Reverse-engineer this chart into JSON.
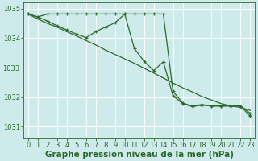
{
  "background_color": "#ceeaea",
  "grid_color": "#b0d8d8",
  "line_color": "#2a6a2a",
  "xlabel": "Graphe pression niveau de la mer (hPa)",
  "ylim": [
    1030.6,
    1035.2
  ],
  "xlim": [
    -0.5,
    23.5
  ],
  "yticks": [
    1031,
    1032,
    1033,
    1034,
    1035
  ],
  "xticks": [
    0,
    1,
    2,
    3,
    4,
    5,
    6,
    7,
    8,
    9,
    10,
    11,
    12,
    13,
    14,
    15,
    16,
    17,
    18,
    19,
    20,
    21,
    22,
    23
  ],
  "xlabel_fontsize": 7.5,
  "tick_fontsize": 6.0,
  "series1": [
    1034.82,
    1034.72,
    1034.82,
    1034.82,
    1034.82,
    1034.82,
    1034.82,
    1034.82,
    1034.82,
    1034.82,
    1034.82,
    1034.82,
    1034.82,
    1034.82,
    1034.82,
    1032.2,
    1031.8,
    1031.7,
    1031.75,
    1031.7,
    1031.7,
    1031.7,
    1031.7,
    1031.45
  ],
  "series2": [
    1034.82,
    1034.65,
    1034.5,
    1034.38,
    1034.22,
    1034.08,
    1033.92,
    1033.77,
    1033.6,
    1033.45,
    1033.3,
    1033.15,
    1032.98,
    1032.82,
    1032.65,
    1032.48,
    1032.32,
    1032.18,
    1032.02,
    1031.9,
    1031.78,
    1031.7,
    1031.65,
    1031.55
  ],
  "series3": [
    1034.82,
    1034.72,
    1034.58,
    1034.42,
    1034.28,
    1034.14,
    1034.02,
    1034.22,
    1034.38,
    1034.52,
    1034.82,
    1033.65,
    1033.22,
    1032.9,
    1033.2,
    1032.05,
    1031.78,
    1031.68,
    1031.73,
    1031.7,
    1031.7,
    1031.7,
    1031.7,
    1031.35
  ]
}
